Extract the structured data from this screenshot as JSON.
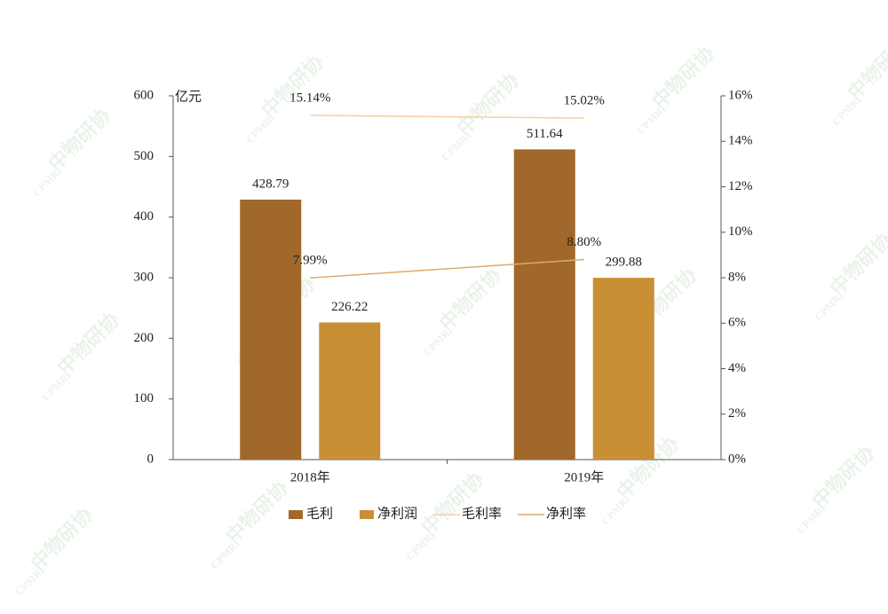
{
  "chart_data": {
    "type": "bar",
    "y_label": "亿元",
    "categories": [
      "2018年",
      "2019年"
    ],
    "series": [
      {
        "name": "毛利",
        "type": "bar",
        "color": "#a0682a",
        "values": [
          428.79,
          511.64
        ]
      },
      {
        "name": "净利润",
        "type": "bar",
        "color": "#c98f35",
        "values": [
          226.22,
          299.88
        ]
      },
      {
        "name": "毛利率",
        "type": "line",
        "axis": "y2",
        "color": "#f6cfa6",
        "values": [
          15.14,
          15.02
        ],
        "value_labels": [
          "15.14%",
          "15.02%"
        ]
      },
      {
        "name": "净利率",
        "type": "line",
        "axis": "y2",
        "color": "#dcab6c",
        "values": [
          7.99,
          8.8
        ],
        "value_labels": [
          "7.99%",
          "8.80%"
        ]
      }
    ],
    "ylim": [
      0,
      600
    ],
    "yticks": [
      0,
      100,
      200,
      300,
      400,
      500,
      600
    ],
    "y2lim": [
      0,
      16
    ],
    "y2ticks": [
      {
        "value": 0,
        "label": "0%"
      },
      {
        "value": 2,
        "label": "2%"
      },
      {
        "value": 4,
        "label": "4%"
      },
      {
        "value": 6,
        "label": "6%"
      },
      {
        "value": 8,
        "label": "8%"
      },
      {
        "value": 10,
        "label": "10%"
      },
      {
        "value": 12,
        "label": "12%"
      },
      {
        "value": 14,
        "label": "14%"
      },
      {
        "value": 16,
        "label": "16%"
      }
    ],
    "legend": "bottom"
  },
  "watermark": {
    "text": "中物研协",
    "sub": "CPMRI"
  }
}
